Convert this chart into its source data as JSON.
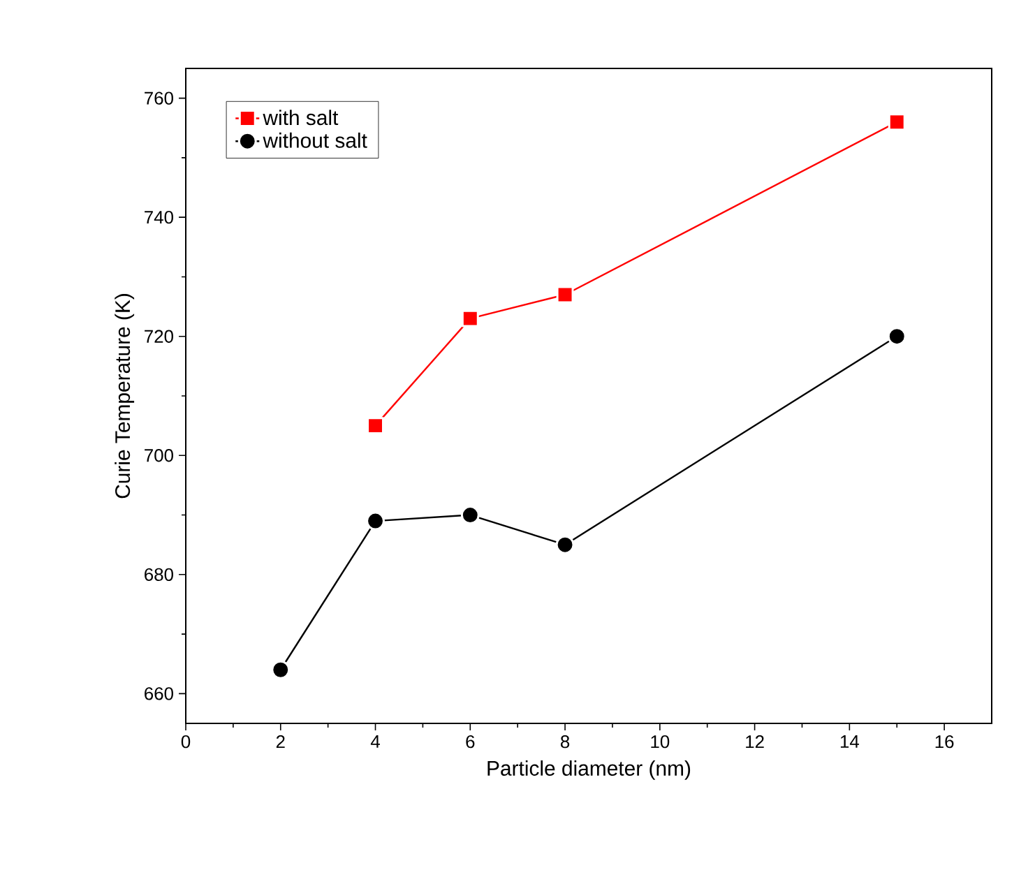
{
  "chart_data": {
    "type": "line",
    "xlabel": "Particle diameter (nm)",
    "ylabel": "Curie Temperature (K)",
    "xlim": [
      0,
      17
    ],
    "ylim": [
      655,
      765
    ],
    "xticks": [
      0,
      2,
      4,
      6,
      8,
      10,
      12,
      14,
      16
    ],
    "yticks": [
      660,
      680,
      700,
      720,
      740,
      760
    ],
    "legend": "top left",
    "grid": false,
    "series": [
      {
        "name": "with salt",
        "color": "#ff0000",
        "marker": "square",
        "x": [
          4,
          6,
          8,
          15
        ],
        "values": [
          705,
          723,
          727,
          756
        ]
      },
      {
        "name": "without salt",
        "color": "#000000",
        "marker": "circle",
        "x": [
          2,
          4,
          6,
          8,
          15
        ],
        "values": [
          664,
          689,
          690,
          685,
          720
        ]
      }
    ]
  }
}
